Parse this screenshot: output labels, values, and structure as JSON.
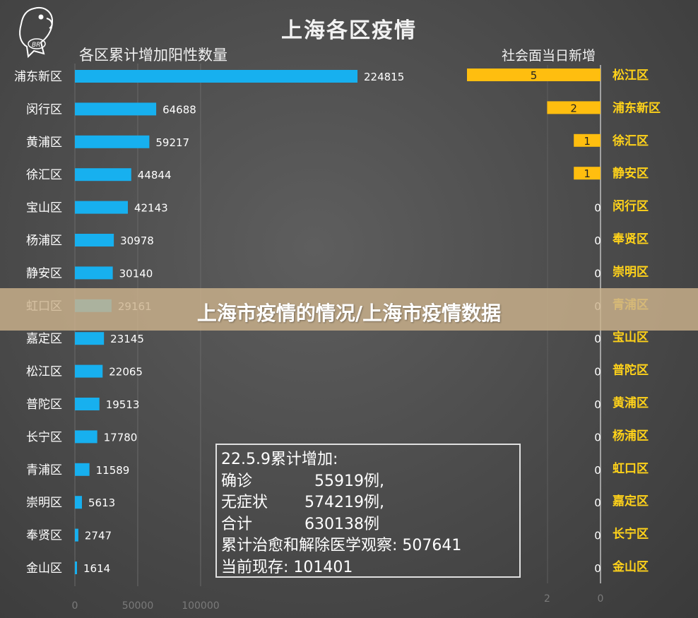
{
  "header": {
    "title": "上海各区疫情",
    "left_subtitle": "各区累计增加阳性数量",
    "right_subtitle": "社会面当日新增",
    "logo_text": "BR"
  },
  "banner": {
    "text": "上海市疫情的情况/上海市疫情数据"
  },
  "note": {
    "title": "22.5.9累计增加:",
    "lines": [
      {
        "label": "确诊",
        "value": "55919例,"
      },
      {
        "label": "无症状",
        "value": "574219例,"
      },
      {
        "label": "合计",
        "value": "630138例"
      },
      {
        "label": "累计治愈和解除医学观察:",
        "value": "507641"
      },
      {
        "label": "当前现存:",
        "value": "101401"
      }
    ]
  },
  "colors": {
    "left_bar": "#17b0ef",
    "right_bar": "#ffbe0f",
    "right_label": "#ffd21a"
  },
  "chart_data": [
    {
      "type": "bar",
      "orientation": "horizontal",
      "title": "各区累计增加阳性数量",
      "categories": [
        "浦东新区",
        "闵行区",
        "黄浦区",
        "徐汇区",
        "宝山区",
        "杨浦区",
        "静安区",
        "虹口区",
        "嘉定区",
        "松江区",
        "普陀区",
        "长宁区",
        "青浦区",
        "崇明区",
        "奉贤区",
        "金山区"
      ],
      "values": [
        224815,
        64688,
        59217,
        44844,
        42143,
        30978,
        30140,
        29161,
        23145,
        22065,
        19513,
        17780,
        11589,
        5613,
        2747,
        1614
      ],
      "xticks": [
        "0",
        "50000",
        "100000"
      ],
      "xlim": [
        0,
        250000
      ]
    },
    {
      "type": "bar",
      "orientation": "horizontal",
      "direction": "right-to-left",
      "title": "社会面当日新增",
      "categories": [
        "松江区",
        "浦东新区",
        "徐汇区",
        "静安区",
        "闵行区",
        "奉贤区",
        "崇明区",
        "青浦区",
        "宝山区",
        "普陀区",
        "黄浦区",
        "杨浦区",
        "虹口区",
        "嘉定区",
        "长宁区",
        "金山区"
      ],
      "values": [
        5,
        2,
        1,
        1,
        0,
        0,
        0,
        0,
        0,
        0,
        0,
        0,
        0,
        0,
        0,
        0
      ],
      "xticks": [
        "2",
        "0"
      ],
      "xlim": [
        0,
        5
      ]
    }
  ]
}
